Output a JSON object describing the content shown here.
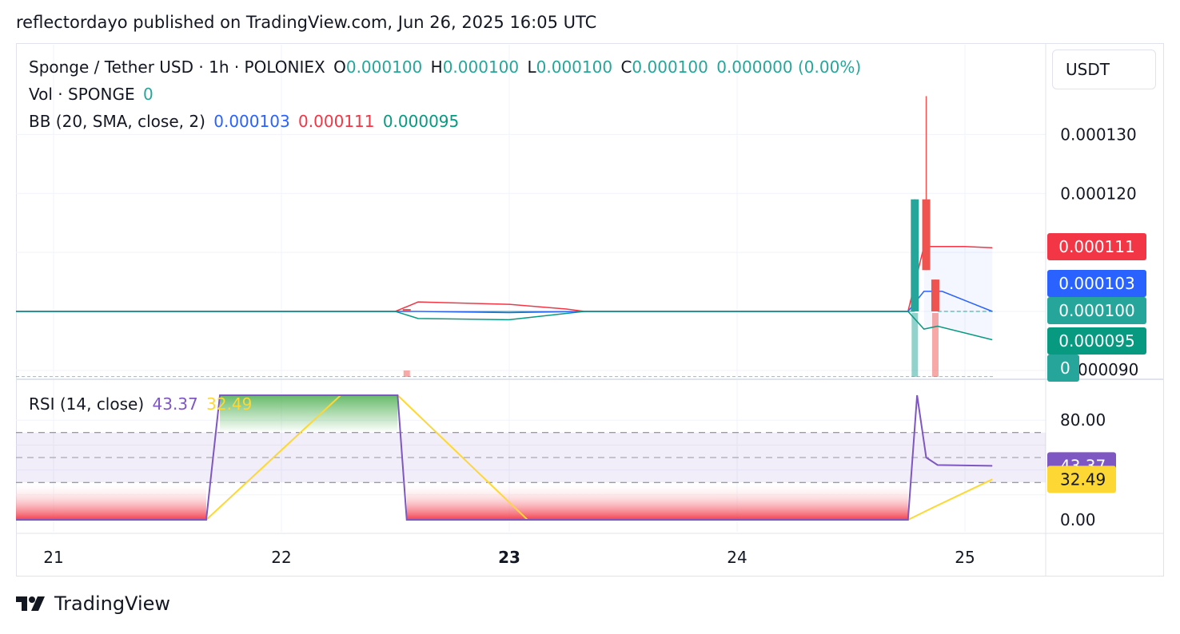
{
  "header": {
    "published_line": "reflectordayo published on TradingView.com, Jun 26, 2025 16:05 UTC"
  },
  "legend": {
    "symbol": "Sponge / Tether USD · 1h · POLONIEX",
    "o_label": "O",
    "o_value": "0.000100",
    "h_label": "H",
    "h_value": "0.000100",
    "l_label": "L",
    "l_value": "0.000100",
    "c_label": "C",
    "c_value": "0.000100",
    "change": "0.000000 (0.00%)",
    "vol_label": "Vol · SPONGE",
    "vol_value": "0",
    "bb_label": "BB (20, SMA, close, 2)",
    "bb_basis": "0.000103",
    "bb_upper": "0.000111",
    "bb_lower": "0.000095",
    "rsi_label": "RSI (14, close)",
    "rsi_value": "43.37",
    "rsi_ma_value": "32.49"
  },
  "currency": "USDT",
  "footer": {
    "brand": "TradingView"
  },
  "colors": {
    "up": "#26a69a",
    "down": "#ef5350",
    "bb_basis": "#2962ff",
    "bb_upper": "#f23645",
    "bb_lower": "#089981",
    "rsi": "#7e57c2",
    "rsi_ma": "#fdd835",
    "grid": "#f0f3fa",
    "text": "#131722"
  },
  "chart_data": {
    "type": "candlestick",
    "x_tick_labels": [
      "21",
      "22",
      "23",
      "24",
      "25"
    ],
    "x_bold_tick": "23",
    "price_axis": {
      "ticks": [
        0.00013,
        0.00012
      ],
      "tick_labels": [
        "0.000130",
        "0.000120"
      ],
      "range": [
        8.89e-05,
        0.0001398
      ],
      "partial_bottom_label": "000090"
    },
    "price_badges": [
      {
        "label": "0.000111",
        "value": 0.000111,
        "color": "#f23645"
      },
      {
        "label": "0.000103",
        "value": 0.0001034,
        "color": "#2962ff"
      },
      {
        "label": "0.000100",
        "value": 0.0001,
        "color": "#26a69a"
      },
      {
        "label": "0.000095",
        "value": 9.52e-05,
        "color": "#089981"
      },
      {
        "label": "0",
        "value": 9.03e-05,
        "color": "#26a69a"
      }
    ],
    "candles": [
      {
        "day": 22.55,
        "open": 0.0001004,
        "high": 0.0001004,
        "low": 0.0001,
        "close": 0.0001,
        "dir": "down"
      },
      {
        "day": 24.78,
        "open": 0.0001,
        "high": 0.000119,
        "low": 0.0001,
        "close": 0.000119,
        "dir": "up"
      },
      {
        "day": 24.83,
        "open": 0.000119,
        "high": 0.0001365,
        "low": 0.000107,
        "close": 0.000107,
        "dir": "down"
      },
      {
        "day": 24.87,
        "open": 0.0001054,
        "high": 0.0001054,
        "low": 0.0001,
        "close": 0.0001,
        "dir": "down"
      }
    ],
    "flat_price": 0.0001,
    "bb_basis": [
      [
        20.0,
        0.0001
      ],
      [
        22.5,
        0.0001
      ],
      [
        22.6,
        0.0001
      ],
      [
        23.0,
        9.98e-05
      ],
      [
        23.33,
        0.0001
      ],
      [
        24.75,
        0.0001
      ],
      [
        24.82,
        0.0001034
      ],
      [
        24.9,
        0.0001034
      ],
      [
        25.12,
        0.0001
      ],
      [
        25.12,
        0.0001
      ]
    ],
    "bb_upper": [
      [
        20.0,
        0.0001
      ],
      [
        22.5,
        0.0001
      ],
      [
        22.6,
        0.0001016
      ],
      [
        23.0,
        0.0001012
      ],
      [
        23.25,
        0.0001004
      ],
      [
        23.33,
        0.0001
      ],
      [
        24.75,
        0.0001
      ],
      [
        24.82,
        0.000111
      ],
      [
        25.0,
        0.000111
      ],
      [
        25.12,
        0.0001108
      ]
    ],
    "bb_lower": [
      [
        20.0,
        0.0001
      ],
      [
        22.5,
        0.0001
      ],
      [
        22.6,
        9.88e-05
      ],
      [
        23.0,
        9.86e-05
      ],
      [
        23.33,
        0.0001
      ],
      [
        24.75,
        0.0001
      ],
      [
        24.82,
        9.7e-05
      ],
      [
        24.88,
        9.75e-05
      ],
      [
        25.12,
        9.52e-05
      ]
    ],
    "volume": [
      {
        "day": 22.55,
        "value": 0.1,
        "dir": "down"
      },
      {
        "day": 24.78,
        "value": 1.0,
        "dir": "up"
      },
      {
        "day": 24.87,
        "value": 1.0,
        "dir": "down"
      }
    ],
    "rsi_axis": {
      "ticks": [
        80,
        0
      ],
      "tick_labels": [
        "80.00",
        "0.00"
      ],
      "range": [
        0,
        100
      ]
    },
    "rsi_bands": {
      "upper": 70,
      "middle": 50,
      "lower": 30
    },
    "rsi_badges": [
      {
        "label": "43.37",
        "value": 43.37,
        "color": "#7e57c2"
      },
      {
        "label": "32.49",
        "value": 32.49,
        "color": "#fdd835"
      }
    ],
    "rsi": [
      [
        20.0,
        0
      ],
      [
        21.67,
        0
      ],
      [
        21.73,
        100
      ],
      [
        22.51,
        100
      ],
      [
        22.55,
        0
      ],
      [
        24.75,
        0
      ],
      [
        24.79,
        100
      ],
      [
        24.83,
        50
      ],
      [
        24.88,
        44
      ],
      [
        25.12,
        43.37
      ]
    ],
    "rsi_ma": [
      [
        20.0,
        0
      ],
      [
        21.67,
        0
      ],
      [
        22.26,
        100
      ],
      [
        22.51,
        100
      ],
      [
        23.08,
        0
      ],
      [
        24.75,
        0
      ],
      [
        24.85,
        9
      ],
      [
        25.12,
        32.49
      ]
    ]
  }
}
